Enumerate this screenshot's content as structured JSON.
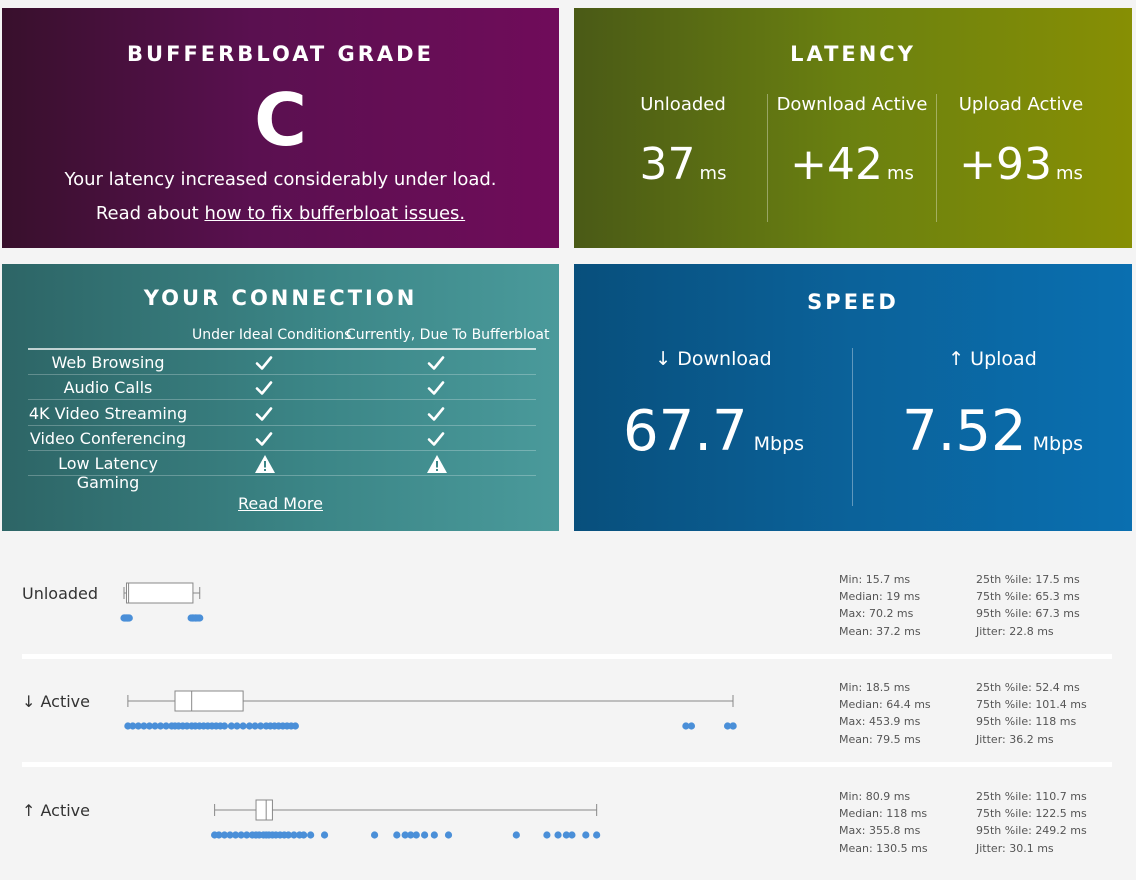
{
  "grade": {
    "title": "BUFFERBLOAT GRADE",
    "letter": "C",
    "message": "Your latency increased considerably under load.",
    "read_prefix": "Read about",
    "read_link": "how to fix bufferbloat issues."
  },
  "latency": {
    "title": "LATENCY",
    "columns": [
      {
        "label": "Unloaded",
        "value": "37",
        "unit": "ms"
      },
      {
        "label": "Download Active",
        "value": "+42",
        "unit": "ms"
      },
      {
        "label": "Upload Active",
        "value": "+93",
        "unit": "ms"
      }
    ]
  },
  "connection": {
    "title": "YOUR CONNECTION",
    "col_ideal": "Under Ideal Conditions",
    "col_current": "Currently, Due To Bufferbloat",
    "rows": [
      {
        "name": "Web Browsing",
        "ideal": "check",
        "current": "check"
      },
      {
        "name": "Audio Calls",
        "ideal": "check",
        "current": "check"
      },
      {
        "name": "4K Video Streaming",
        "ideal": "check",
        "current": "check"
      },
      {
        "name": "Video Conferencing",
        "ideal": "check",
        "current": "check"
      },
      {
        "name": "Low Latency Gaming",
        "ideal": "warning",
        "current": "warning"
      }
    ],
    "read_more": "Read More"
  },
  "speed": {
    "title": "SPEED",
    "download": {
      "label": "↓ Download",
      "value": "67.7",
      "unit": "Mbps"
    },
    "upload": {
      "label": "↑ Upload",
      "value": "7.52",
      "unit": "Mbps"
    }
  },
  "latency_details": [
    {
      "label": "Unloaded",
      "stats_left": [
        "Min: 15.7 ms",
        "Median: 19 ms",
        "Max: 70.2 ms",
        "Mean: 37.2 ms"
      ],
      "stats_right": [
        "25th %ile: 17.5 ms",
        "75th %ile: 65.3 ms",
        "95th %ile: 67.3 ms",
        "Jitter: 22.8 ms"
      ],
      "box": {
        "min": 15.7,
        "q1": 17.5,
        "median": 19,
        "q3": 65.3,
        "max": 70.2
      },
      "points": [
        15.7,
        16,
        16.5,
        17,
        17.5,
        18,
        18.5,
        19,
        19.5,
        64,
        65,
        65.3,
        66,
        67,
        67.3,
        68,
        69,
        70.2
      ]
    },
    {
      "label": "↓ Active",
      "stats_left": [
        "Min: 18.5 ms",
        "Median: 64.4 ms",
        "Max: 453.9 ms",
        "Mean: 79.5 ms"
      ],
      "stats_right": [
        "25th %ile: 52.4 ms",
        "75th %ile: 101.4 ms",
        "95th %ile: 118 ms",
        "Jitter: 36.2 ms"
      ],
      "box": {
        "min": 18.5,
        "q1": 52.4,
        "median": 64.4,
        "q3": 101.4,
        "max": 453.9
      },
      "points": [
        18.5,
        22,
        26,
        30,
        34,
        38,
        42,
        46,
        50,
        52.4,
        55,
        58,
        61,
        64.4,
        67,
        70,
        73,
        76,
        79,
        82,
        85,
        88,
        93,
        97,
        101.4,
        106,
        110,
        114,
        118,
        121,
        124,
        127,
        130,
        133,
        136,
        139,
        420,
        424,
        450,
        454,
        453.9
      ]
    },
    {
      "label": "↑ Active",
      "stats_left": [
        "Min: 80.9 ms",
        "Median: 118 ms",
        "Max: 355.8 ms",
        "Mean: 130.5 ms"
      ],
      "stats_right": [
        "25th %ile: 110.7 ms",
        "75th %ile: 122.5 ms",
        "95th %ile: 249.2 ms",
        "Jitter: 30.1 ms"
      ],
      "box": {
        "min": 80.9,
        "q1": 110.7,
        "median": 118,
        "q3": 122.5,
        "max": 355.8
      },
      "points": [
        80.9,
        84,
        88,
        92,
        96,
        100,
        104,
        108,
        110.7,
        113,
        116,
        118,
        120,
        122.5,
        125,
        128,
        131,
        134,
        138,
        142,
        145,
        150,
        160,
        196,
        212,
        218,
        222,
        226,
        232,
        239,
        249.2,
        298,
        320,
        328,
        334,
        338,
        348,
        355.8
      ]
    }
  ],
  "axis": {
    "min_ms": 15.7,
    "max_ms": 453.9
  }
}
